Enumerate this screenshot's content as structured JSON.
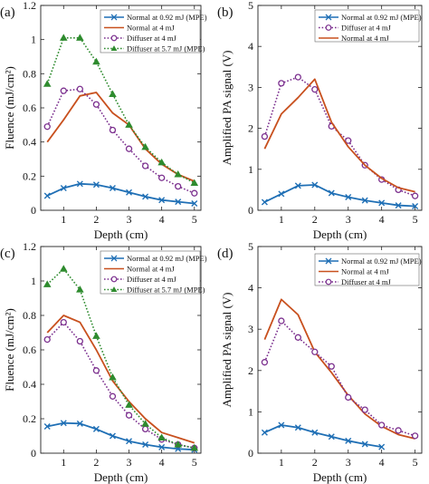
{
  "colors": {
    "normal_mpe": "#1f6fb5",
    "normal_4mj": "#c8501e",
    "diffuser_4mj": "#7b2f8e",
    "diffuser_5_7mj": "#2e8b2e",
    "axis": "#222222"
  },
  "chart_data": [
    {
      "panel_label": "(a)",
      "type": "line",
      "xlabel": "Depth (cm)",
      "ylabel": "Fluence (mJ/cm²)",
      "xlim": [
        0.3,
        5.2
      ],
      "ylim": [
        0,
        1.2
      ],
      "xticks": [
        1,
        2,
        3,
        4,
        5
      ],
      "yticks": [
        0,
        0.2,
        0.4,
        0.6,
        0.8,
        1,
        1.2
      ],
      "ytick_labels": [
        "0",
        "0.2",
        "0.4",
        "0.6",
        "0.8",
        "1",
        "1.2"
      ],
      "legend_position": "top-right",
      "series": [
        {
          "name": "Normal at 0.92 mJ (MPE)",
          "color_key": "normal_mpe",
          "marker": "x",
          "dash": "solid",
          "x": [
            0.5,
            1,
            1.5,
            2,
            2.5,
            3,
            3.5,
            4,
            4.5,
            5
          ],
          "y": [
            0.085,
            0.13,
            0.155,
            0.15,
            0.13,
            0.105,
            0.08,
            0.06,
            0.05,
            0.04
          ]
        },
        {
          "name": "Normal at 4 mJ",
          "color_key": "normal_4mj",
          "marker": "none",
          "dash": "solid",
          "x": [
            0.5,
            1,
            1.5,
            2,
            2.5,
            3,
            3.5,
            4,
            4.5,
            5
          ],
          "y": [
            0.4,
            0.53,
            0.67,
            0.69,
            0.57,
            0.5,
            0.36,
            0.27,
            0.21,
            0.17
          ]
        },
        {
          "name": "Diffuser at 4 mJ",
          "color_key": "diffuser_4mj",
          "marker": "circle",
          "dash": "dotted",
          "x": [
            0.5,
            1,
            1.5,
            2,
            2.5,
            3,
            3.5,
            4,
            4.5,
            5
          ],
          "y": [
            0.49,
            0.7,
            0.71,
            0.62,
            0.47,
            0.36,
            0.26,
            0.19,
            0.14,
            0.1
          ]
        },
        {
          "name": "Diffuser at 5.7 mJ (MPE)",
          "color_key": "diffuser_5_7mj",
          "marker": "triangle",
          "dash": "dotted",
          "x": [
            0.5,
            1,
            1.5,
            2,
            2.5,
            3,
            3.5,
            4,
            4.5,
            5
          ],
          "y": [
            0.74,
            1.01,
            1.01,
            0.87,
            0.68,
            0.5,
            0.37,
            0.28,
            0.21,
            0.16
          ]
        }
      ]
    },
    {
      "panel_label": "(b)",
      "type": "line",
      "xlabel": "Depth (cm)",
      "ylabel": "Amplified PA signal (V)",
      "xlim": [
        0.3,
        5.2
      ],
      "ylim": [
        0,
        5
      ],
      "xticks": [
        1,
        2,
        3,
        4,
        5
      ],
      "yticks": [
        0,
        1,
        2,
        3,
        4,
        5
      ],
      "ytick_labels": [
        "0",
        "1",
        "2",
        "3",
        "4",
        "5"
      ],
      "legend_position": "top-right",
      "series": [
        {
          "name": "Normal at 0.92 mJ (MPE)",
          "color_key": "normal_mpe",
          "marker": "x",
          "dash": "solid",
          "x": [
            0.5,
            1,
            1.5,
            2,
            2.5,
            3,
            3.5,
            4,
            4.5,
            5
          ],
          "y": [
            0.2,
            0.4,
            0.6,
            0.62,
            0.42,
            0.32,
            0.24,
            0.18,
            0.12,
            0.1
          ]
        },
        {
          "name": "Diffuser at 4 mJ",
          "color_key": "diffuser_4mj",
          "marker": "circle",
          "dash": "dotted",
          "x": [
            0.5,
            1,
            1.5,
            2,
            2.5,
            3,
            3.5,
            4,
            4.5,
            5
          ],
          "y": [
            1.8,
            3.1,
            3.25,
            2.95,
            2.05,
            1.7,
            1.1,
            0.75,
            0.5,
            0.35
          ]
        },
        {
          "name": "Normal at 4 mJ",
          "color_key": "normal_4mj",
          "marker": "none",
          "dash": "solid",
          "x": [
            0.5,
            1,
            1.5,
            2,
            2.5,
            3,
            3.5,
            4,
            4.5,
            5
          ],
          "y": [
            1.5,
            2.35,
            2.75,
            3.2,
            2.15,
            1.55,
            1.1,
            0.78,
            0.55,
            0.45
          ]
        }
      ]
    },
    {
      "panel_label": "(c)",
      "type": "line",
      "xlabel": "Depth (cm)",
      "ylabel": "Fluence (mJ/cm²)",
      "xlim": [
        0.3,
        5.2
      ],
      "ylim": [
        0,
        1.2
      ],
      "xticks": [
        1,
        2,
        3,
        4,
        5
      ],
      "yticks": [
        0,
        0.2,
        0.4,
        0.6,
        0.8,
        1,
        1.2
      ],
      "ytick_labels": [
        "0",
        "0.2",
        "0.4",
        "0.6",
        "0.8",
        "1",
        "1.2"
      ],
      "legend_position": "top-right",
      "series": [
        {
          "name": "Normal at 0.92 mJ (MPE)",
          "color_key": "normal_mpe",
          "marker": "x",
          "dash": "solid",
          "x": [
            0.5,
            1,
            1.5,
            2,
            2.5,
            3,
            3.5,
            4,
            4.5,
            5
          ],
          "y": [
            0.155,
            0.175,
            0.172,
            0.14,
            0.1,
            0.07,
            0.05,
            0.035,
            0.025,
            0.02
          ]
        },
        {
          "name": "Normal at 4 mJ",
          "color_key": "normal_4mj",
          "marker": "none",
          "dash": "solid",
          "x": [
            0.5,
            1,
            1.5,
            2,
            2.5,
            3,
            3.5,
            4,
            4.5,
            5
          ],
          "y": [
            0.7,
            0.8,
            0.76,
            0.6,
            0.42,
            0.3,
            0.2,
            0.12,
            0.09,
            0.06
          ]
        },
        {
          "name": "Diffuser at 4 mJ",
          "color_key": "diffuser_4mj",
          "marker": "circle",
          "dash": "dotted",
          "x": [
            0.5,
            1,
            1.5,
            2,
            2.5,
            3,
            3.5,
            4,
            4.5,
            5
          ],
          "y": [
            0.66,
            0.76,
            0.65,
            0.48,
            0.33,
            0.22,
            0.14,
            0.08,
            0.05,
            0.03
          ]
        },
        {
          "name": "Diffuser at 5.7 mJ (MPE)",
          "color_key": "diffuser_5_7mj",
          "marker": "triangle",
          "dash": "dotted",
          "x": [
            0.5,
            1,
            1.5,
            2,
            2.5,
            3,
            3.5,
            4,
            4.5,
            5
          ],
          "y": [
            0.98,
            1.07,
            0.95,
            0.68,
            0.44,
            0.28,
            0.17,
            0.09,
            0.05,
            0.03
          ]
        }
      ]
    },
    {
      "panel_label": "(d)",
      "type": "line",
      "xlabel": "Depth (cm)",
      "ylabel": "Amplified PA signal (V)",
      "xlim": [
        0.3,
        5.2
      ],
      "ylim": [
        0,
        5
      ],
      "xticks": [
        1,
        2,
        3,
        4,
        5
      ],
      "yticks": [
        0,
        1,
        2,
        3,
        4,
        5
      ],
      "ytick_labels": [
        "0",
        "1",
        "2",
        "3",
        "4",
        "5"
      ],
      "legend_position": "top-right",
      "series": [
        {
          "name": "Normal at 0.92 mJ (MPE)",
          "color_key": "normal_mpe",
          "marker": "x",
          "dash": "solid",
          "x": [
            0.5,
            1,
            1.5,
            2,
            2.5,
            3,
            3.5,
            4
          ],
          "y": [
            0.5,
            0.68,
            0.62,
            0.5,
            0.4,
            0.3,
            0.22,
            0.15
          ]
        },
        {
          "name": "Normal at 4 mJ",
          "color_key": "normal_4mj",
          "marker": "none",
          "dash": "solid",
          "x": [
            0.5,
            1,
            1.5,
            2,
            2.5,
            3,
            3.5,
            4,
            4.5,
            5
          ],
          "y": [
            2.75,
            3.72,
            3.35,
            2.45,
            1.95,
            1.4,
            0.95,
            0.65,
            0.45,
            0.35
          ]
        },
        {
          "name": "Diffuser at 4 mJ",
          "color_key": "diffuser_4mj",
          "marker": "circle",
          "dash": "dotted",
          "x": [
            0.5,
            1,
            1.5,
            2,
            2.5,
            3,
            3.5,
            4,
            4.5,
            5
          ],
          "y": [
            2.2,
            3.2,
            2.8,
            2.45,
            2.1,
            1.35,
            1.05,
            0.68,
            0.55,
            0.42
          ]
        }
      ]
    }
  ]
}
